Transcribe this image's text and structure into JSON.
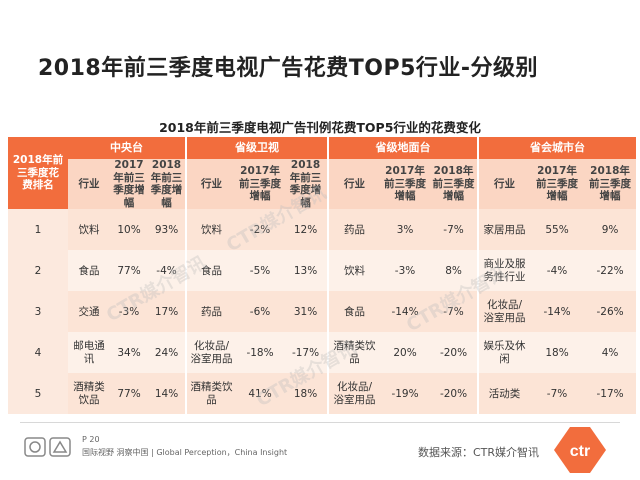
{
  "title": "2018年前三季度电视广告花费TOP5行业-分级别",
  "table_title": "2018年前三季度电视广告刊例花费TOP5行业的花费变化",
  "rank_header": "2018年前三季度花费排名",
  "groups": [
    "中央台",
    "省级卫视",
    "省级地面台",
    "省会城市台"
  ],
  "sub_headers": [
    "行业",
    "2017年前三季度增幅",
    "2018年前三季度增幅"
  ],
  "rows": [
    {
      "rank": "1",
      "cells": [
        [
          "饮料",
          "10%",
          "93%"
        ],
        [
          "饮料",
          "-2%",
          "12%"
        ],
        [
          "药品",
          "3%",
          "-7%"
        ],
        [
          "家居用品",
          "55%",
          "9%"
        ]
      ]
    },
    {
      "rank": "2",
      "cells": [
        [
          "食品",
          "77%",
          "-4%"
        ],
        [
          "食品",
          "-5%",
          "13%"
        ],
        [
          "饮料",
          "-3%",
          "8%"
        ],
        [
          "商业及服务性行业",
          "-4%",
          "-22%"
        ]
      ]
    },
    {
      "rank": "3",
      "cells": [
        [
          "交通",
          "-3%",
          "17%"
        ],
        [
          "药品",
          "-6%",
          "31%"
        ],
        [
          "食品",
          "-14%",
          "-7%"
        ],
        [
          "化妆品/浴室用品",
          "-14%",
          "-26%"
        ]
      ]
    },
    {
      "rank": "4",
      "cells": [
        [
          "邮电通讯",
          "34%",
          "24%"
        ],
        [
          "化妆品/浴室用品",
          "-18%",
          "-17%"
        ],
        [
          "酒精类饮品",
          "20%",
          "-20%"
        ],
        [
          "娱乐及休闲",
          "18%",
          "4%"
        ]
      ]
    },
    {
      "rank": "5",
      "cells": [
        [
          "酒精类饮品",
          "77%",
          "14%"
        ],
        [
          "酒精类饮品",
          "41%",
          "18%"
        ],
        [
          "化妆品/浴室用品",
          "-19%",
          "-20%"
        ],
        [
          "活动类",
          "-7%",
          "-17%"
        ]
      ]
    }
  ],
  "footer": {
    "page": "P 20",
    "tagline": "国际视野 洞察中国 | Global Perception，China Insight",
    "source": "数据来源：CTR媒介智讯",
    "logo_text": "ctr",
    "watermark": "CTR媒介智讯"
  },
  "colors": {
    "header": "#f26d3d",
    "subheader": "#fbd6c3",
    "row_a": "#fce4d6",
    "row_b": "#fdf1e9",
    "logo": "#f26d3d"
  }
}
